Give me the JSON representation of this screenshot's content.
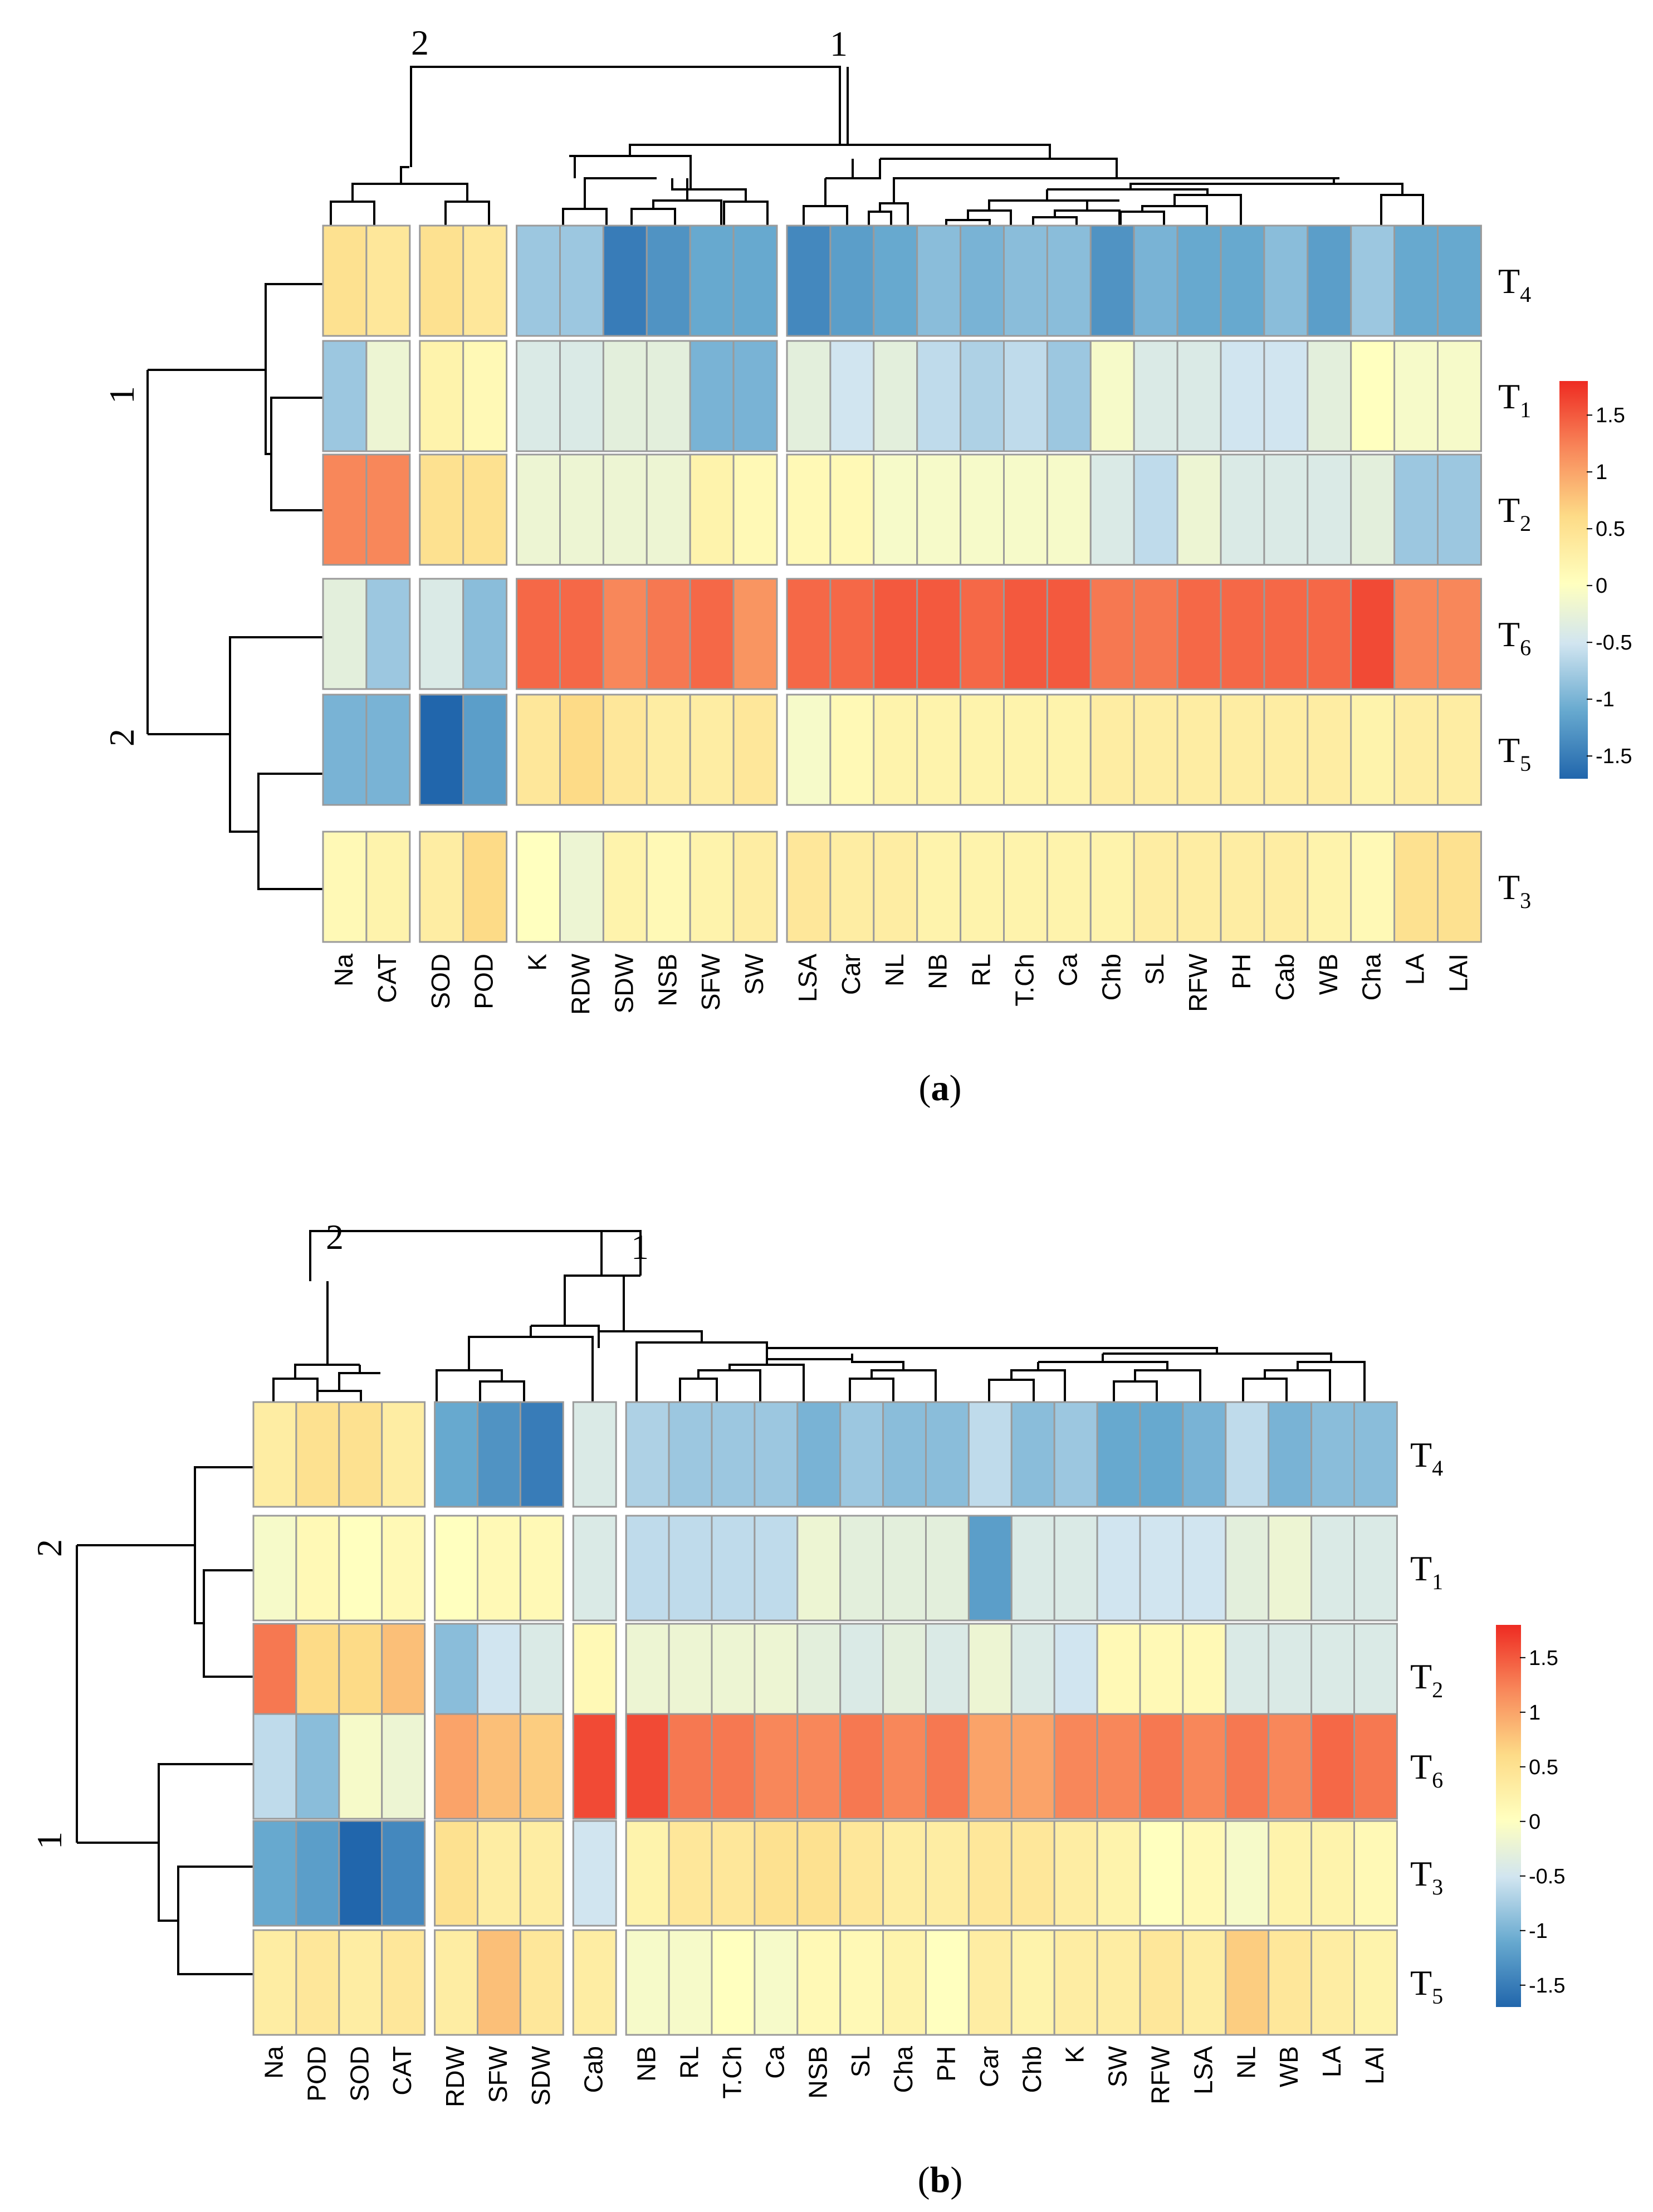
{
  "chart_data": [
    {
      "type": "heatmap",
      "caption_letter": "a",
      "columns": [
        "Na",
        "CAT",
        "SOD",
        "POD",
        "K",
        "RDW",
        "SDW",
        "NSB",
        "SFW",
        "SW",
        "LSA",
        "Car",
        "NL",
        "NB",
        "RL",
        "T.Ch",
        "Ca",
        "Chb",
        "SL",
        "RFW",
        "PH",
        "Cab",
        "WB",
        "Cha",
        "LA",
        "LAI"
      ],
      "rows": [
        {
          "name": "T",
          "sub": "4"
        },
        {
          "name": "T",
          "sub": "1"
        },
        {
          "name": "T",
          "sub": "2"
        },
        {
          "name": "T",
          "sub": "6"
        },
        {
          "name": "T",
          "sub": "5"
        },
        {
          "name": "T",
          "sub": "3"
        }
      ],
      "values": [
        [
          0.5,
          0.4,
          0.5,
          0.4,
          -0.8,
          -0.8,
          -1.5,
          -1.3,
          -1.1,
          -1.1,
          -1.4,
          -1.2,
          -1.1,
          -0.9,
          -1.0,
          -0.9,
          -0.9,
          -1.3,
          -1.0,
          -1.1,
          -1.1,
          -0.9,
          -1.2,
          -0.8,
          -1.1,
          -1.1
        ],
        [
          -0.8,
          -0.2,
          0.2,
          0.1,
          -0.4,
          -0.4,
          -0.3,
          -0.3,
          -1.0,
          -1.0,
          -0.3,
          -0.5,
          -0.3,
          -0.6,
          -0.7,
          -0.6,
          -0.8,
          -0.1,
          -0.4,
          -0.4,
          -0.5,
          -0.5,
          -0.3,
          0.0,
          -0.1,
          -0.1
        ],
        [
          1.2,
          1.2,
          0.5,
          0.5,
          -0.2,
          -0.2,
          -0.2,
          -0.2,
          0.2,
          0.1,
          0.1,
          0.1,
          -0.1,
          -0.1,
          -0.1,
          -0.1,
          -0.1,
          -0.4,
          -0.6,
          -0.2,
          -0.4,
          -0.4,
          -0.4,
          -0.3,
          -0.8,
          -0.8
        ],
        [
          -0.3,
          -0.8,
          -0.4,
          -0.9,
          1.4,
          1.4,
          1.2,
          1.3,
          1.4,
          1.1,
          1.4,
          1.4,
          1.5,
          1.5,
          1.4,
          1.5,
          1.5,
          1.3,
          1.3,
          1.4,
          1.4,
          1.4,
          1.4,
          1.6,
          1.2,
          1.2
        ],
        [
          -1.0,
          -1.0,
          -1.7,
          -1.2,
          0.4,
          0.6,
          0.4,
          0.3,
          0.3,
          0.4,
          -0.1,
          0.1,
          0.2,
          0.2,
          0.2,
          0.2,
          0.2,
          0.3,
          0.3,
          0.3,
          0.3,
          0.3,
          0.3,
          0.2,
          0.3,
          0.3
        ],
        [
          0.1,
          0.2,
          0.3,
          0.6,
          0.0,
          -0.2,
          0.2,
          0.1,
          0.2,
          0.3,
          0.4,
          0.3,
          0.3,
          0.2,
          0.2,
          0.2,
          0.2,
          0.2,
          0.3,
          0.3,
          0.3,
          0.3,
          0.2,
          0.1,
          0.5,
          0.5
        ]
      ],
      "row_cluster_labels": [
        "1",
        "2"
      ],
      "col_cluster_labels": [
        "2",
        "1"
      ],
      "legend": {
        "ticks": [
          "1.5",
          "1",
          "0.5",
          "0",
          "-0.5",
          "-1",
          "-1.5"
        ],
        "tick_values": [
          1.5,
          1,
          0.5,
          0,
          -0.5,
          -1,
          -1.5
        ],
        "min": -1.7,
        "max": 1.8,
        "low_color": "#2166AC",
        "mid_color": "#FFFFBF",
        "high_color": "#EE2B22"
      }
    },
    {
      "type": "heatmap",
      "caption_letter": "b",
      "columns": [
        "Na",
        "POD",
        "SOD",
        "CAT",
        "RDW",
        "SFW",
        "SDW",
        "Cab",
        "NB",
        "RL",
        "T.Ch",
        "Ca",
        "NSB",
        "SL",
        "Cha",
        "PH",
        "Car",
        "Chb",
        "K",
        "SW",
        "RFW",
        "LSA",
        "NL",
        "WB",
        "LA",
        "LAI"
      ],
      "rows": [
        {
          "name": "T",
          "sub": "4"
        },
        {
          "name": "T",
          "sub": "1"
        },
        {
          "name": "T",
          "sub": "2"
        },
        {
          "name": "T",
          "sub": "6"
        },
        {
          "name": "T",
          "sub": "3"
        },
        {
          "name": "T",
          "sub": "5"
        }
      ],
      "values": [
        [
          0.3,
          0.5,
          0.5,
          0.3,
          -1.1,
          -1.3,
          -1.5,
          -0.4,
          -0.7,
          -0.8,
          -0.8,
          -0.8,
          -1.0,
          -0.8,
          -0.9,
          -0.9,
          -0.6,
          -0.9,
          -0.8,
          -1.1,
          -1.1,
          -1.0,
          -0.6,
          -1.0,
          -0.9,
          -0.9
        ],
        [
          -0.1,
          0.1,
          0.0,
          0.1,
          0.0,
          0.1,
          0.1,
          -0.4,
          -0.6,
          -0.6,
          -0.6,
          -0.6,
          -0.2,
          -0.3,
          -0.3,
          -0.3,
          -1.2,
          -0.4,
          -0.4,
          -0.5,
          -0.5,
          -0.5,
          -0.3,
          -0.2,
          -0.4,
          -0.4
        ],
        [
          1.3,
          0.6,
          0.6,
          0.8,
          -0.9,
          -0.5,
          -0.4,
          0.1,
          -0.2,
          -0.2,
          -0.2,
          -0.2,
          -0.3,
          -0.4,
          -0.3,
          -0.4,
          -0.2,
          -0.4,
          -0.5,
          0.1,
          0.1,
          0.1,
          -0.4,
          -0.4,
          -0.4,
          -0.4
        ],
        [
          -0.6,
          -0.9,
          -0.1,
          -0.2,
          1.0,
          0.8,
          0.7,
          1.6,
          1.6,
          1.3,
          1.3,
          1.2,
          1.2,
          1.3,
          1.2,
          1.3,
          1.0,
          1.0,
          1.2,
          1.2,
          1.3,
          1.2,
          1.3,
          1.2,
          1.4,
          1.3
        ],
        [
          -1.1,
          -1.2,
          -1.7,
          -1.4,
          0.5,
          0.3,
          0.3,
          -0.5,
          0.2,
          0.4,
          0.4,
          0.5,
          0.5,
          0.4,
          0.3,
          0.3,
          0.4,
          0.4,
          0.3,
          0.2,
          0.0,
          0.1,
          -0.1,
          0.2,
          0.2,
          0.1
        ],
        [
          0.3,
          0.4,
          0.3,
          0.4,
          0.3,
          0.8,
          0.4,
          0.3,
          -0.1,
          -0.1,
          0.0,
          -0.1,
          0.1,
          0.1,
          0.2,
          0.0,
          0.3,
          0.2,
          0.3,
          0.3,
          0.4,
          0.3,
          0.7,
          0.4,
          0.3,
          0.2
        ]
      ],
      "row_cluster_labels": [
        "2",
        "1"
      ],
      "col_cluster_labels": [
        "2",
        "1"
      ],
      "legend": {
        "ticks": [
          "1.5",
          "1",
          "0.5",
          "0",
          "-0.5",
          "-1",
          "-1.5"
        ],
        "tick_values": [
          1.5,
          1,
          0.5,
          0,
          -0.5,
          -1,
          -1.5
        ],
        "min": -1.7,
        "max": 1.8,
        "low_color": "#2166AC",
        "mid_color": "#FFFFBF",
        "high_color": "#EE2B22"
      }
    }
  ]
}
